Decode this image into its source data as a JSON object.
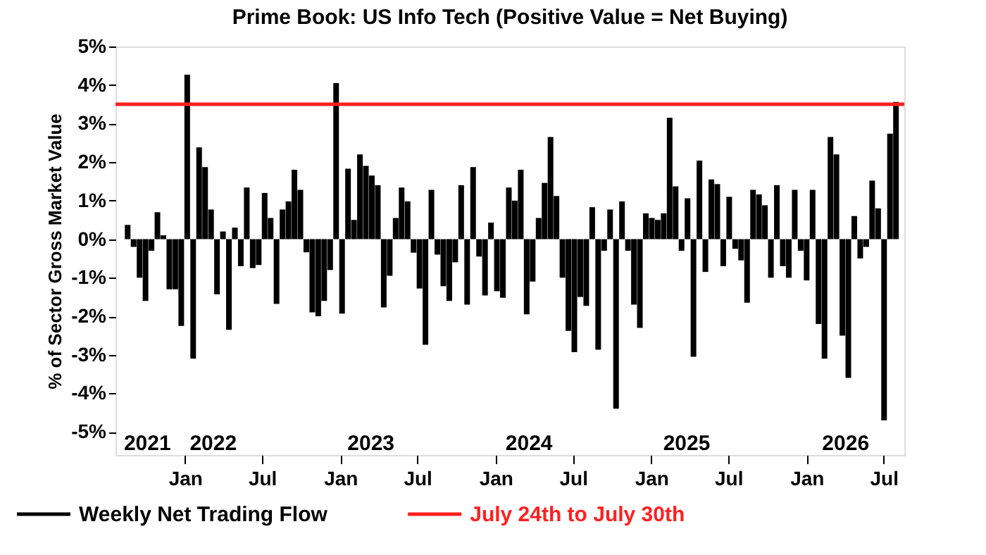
{
  "chart_data": {
    "type": "bar",
    "title": "Prime Book: US Info Tech (Positive Value = Net Buying)",
    "ylabel": "% of Sector Gross Market Value",
    "x": [
      "2021-08-19",
      "2021-09-02",
      "2021-09-16",
      "2021-09-30",
      "2021-10-14",
      "2021-10-28",
      "2021-11-11",
      "2021-11-25",
      "2021-12-09",
      "2021-12-23",
      "2022-01-06",
      "2022-01-20",
      "2022-02-03",
      "2022-02-17",
      "2022-03-03",
      "2022-03-17",
      "2022-03-31",
      "2022-04-14",
      "2022-04-28",
      "2022-05-12",
      "2022-05-26",
      "2022-06-09",
      "2022-06-23",
      "2022-07-07",
      "2022-07-21",
      "2022-08-04",
      "2022-08-18",
      "2022-09-01",
      "2022-09-15",
      "2022-09-29",
      "2022-10-13",
      "2022-10-27",
      "2022-11-10",
      "2022-11-24",
      "2022-12-08",
      "2022-12-22",
      "2023-01-05",
      "2023-01-19",
      "2023-02-02",
      "2023-02-16",
      "2023-03-02",
      "2023-03-16",
      "2023-03-30",
      "2023-04-13",
      "2023-04-27",
      "2023-05-11",
      "2023-05-25",
      "2023-06-08",
      "2023-06-22",
      "2023-07-06",
      "2023-07-20",
      "2023-08-03",
      "2023-08-17",
      "2023-08-31",
      "2023-09-14",
      "2023-09-28",
      "2023-10-12",
      "2023-10-26",
      "2023-11-09",
      "2023-11-23",
      "2023-12-07",
      "2023-12-21",
      "2024-01-04",
      "2024-01-18",
      "2024-02-01",
      "2024-02-15",
      "2024-02-29",
      "2024-03-14",
      "2024-03-28",
      "2024-04-11",
      "2024-04-25",
      "2024-05-09",
      "2024-05-23",
      "2024-06-06",
      "2024-06-20",
      "2024-07-04",
      "2024-07-18",
      "2024-08-01",
      "2024-08-15",
      "2024-08-29",
      "2024-09-12",
      "2024-09-26",
      "2024-10-10",
      "2024-10-24",
      "2024-11-07",
      "2024-11-21",
      "2024-12-05",
      "2024-12-19",
      "2025-01-02",
      "2025-01-16",
      "2025-01-30",
      "2025-02-13",
      "2025-02-27",
      "2025-03-13",
      "2025-03-27",
      "2025-04-10",
      "2025-04-24",
      "2025-05-08",
      "2025-05-22",
      "2025-06-05",
      "2025-06-19",
      "2025-07-03",
      "2025-07-17",
      "2025-07-31",
      "2025-08-14",
      "2025-08-28",
      "2025-09-11",
      "2025-09-25",
      "2025-10-09",
      "2025-10-23",
      "2025-11-06",
      "2025-11-20",
      "2025-12-04",
      "2025-12-18",
      "2026-01-01",
      "2026-01-15",
      "2026-01-29",
      "2026-02-12",
      "2026-02-26",
      "2026-03-12",
      "2026-03-26",
      "2026-04-09",
      "2026-04-23",
      "2026-05-07",
      "2026-05-21",
      "2026-06-04",
      "2026-06-18",
      "2026-07-02",
      "2026-07-16",
      "2026-07-30"
    ],
    "series": [
      {
        "name": "Weekly Net Trading Flow",
        "color": "#000000",
        "values": [
          0.37,
          -0.2,
          -1.0,
          -1.6,
          -0.3,
          0.7,
          0.1,
          -1.3,
          -1.3,
          -2.25,
          4.27,
          -3.1,
          2.38,
          1.87,
          0.77,
          -1.43,
          0.2,
          -2.35,
          0.3,
          -0.7,
          1.34,
          -0.75,
          -0.67,
          1.2,
          0.55,
          -1.68,
          0.77,
          0.98,
          1.8,
          1.28,
          -0.34,
          -1.9,
          -2.0,
          -1.6,
          -0.8,
          4.05,
          -1.93,
          1.83,
          0.5,
          2.2,
          1.9,
          1.65,
          1.4,
          -1.77,
          -0.95,
          0.55,
          1.34,
          0.98,
          -0.35,
          -1.28,
          -2.74,
          1.28,
          -0.4,
          -1.22,
          -1.6,
          -0.6,
          1.4,
          -1.7,
          1.87,
          -0.45,
          -1.46,
          0.43,
          -1.35,
          -1.52,
          1.34,
          1.0,
          1.8,
          -1.95,
          -1.1,
          0.55,
          1.46,
          2.65,
          1.12,
          -1.0,
          -2.38,
          -2.93,
          -1.5,
          -1.73,
          0.83,
          -2.87,
          -0.3,
          0.77,
          -4.4,
          0.98,
          -0.3,
          -1.7,
          -2.3,
          0.67,
          0.55,
          0.5,
          0.67,
          3.15,
          1.37,
          -0.3,
          1.06,
          -3.05,
          2.04,
          -0.85,
          1.55,
          1.43,
          -0.7,
          1.1,
          -0.25,
          -0.55,
          -1.65,
          1.28,
          1.16,
          0.88,
          -1.0,
          1.4,
          -0.7,
          -1.0,
          1.28,
          -0.3,
          -1.07,
          1.28,
          -2.2,
          -3.1,
          2.65,
          2.2,
          -2.5,
          -3.6,
          0.6,
          -0.5,
          -0.2,
          1.52,
          0.8,
          -4.7,
          2.74,
          3.56
        ]
      }
    ],
    "xlim": [
      "2021-08-07",
      "2026-08-02"
    ],
    "xticks": [
      {
        "value": "2022-01-01",
        "label": "Jan"
      },
      {
        "value": "2022-07-01",
        "label": "Jul"
      },
      {
        "value": "2023-01-01",
        "label": "Jan"
      },
      {
        "value": "2023-07-01",
        "label": "Jul"
      },
      {
        "value": "2024-01-01",
        "label": "Jan"
      },
      {
        "value": "2024-07-01",
        "label": "Jul"
      },
      {
        "value": "2025-01-01",
        "label": "Jan"
      },
      {
        "value": "2025-07-01",
        "label": "Jul"
      },
      {
        "value": "2026-01-01",
        "label": "Jan"
      },
      {
        "value": "2026-07-01",
        "label": "Jul"
      }
    ],
    "ylim": [
      -5.6,
      5
    ],
    "yticks": [
      {
        "value": -5,
        "label": "-5%"
      },
      {
        "value": -4,
        "label": "-4%"
      },
      {
        "value": -3,
        "label": "-3%"
      },
      {
        "value": -2,
        "label": "-2%"
      },
      {
        "value": -1,
        "label": "-1%"
      },
      {
        "value": 0,
        "label": "0%"
      },
      {
        "value": 1,
        "label": "1%"
      },
      {
        "value": 2,
        "label": "2%"
      },
      {
        "value": 3,
        "label": "3%"
      },
      {
        "value": 4,
        "label": "4%"
      },
      {
        "value": 5,
        "label": "5%"
      }
    ],
    "ref_lines": [
      {
        "axis": "y",
        "value": 3.5,
        "label": "July 24th to July 30th",
        "color": "#ff2020"
      }
    ],
    "x2lim": [
      "2021-08-07",
      "2026-08-02"
    ],
    "x2ticks": [
      {
        "value": "2021-10-18",
        "label": "2021"
      },
      {
        "value": "2022-03-19",
        "label": "2022"
      },
      {
        "value": "2023-03-18",
        "label": "2023"
      },
      {
        "value": "2024-03-17",
        "label": "2024"
      },
      {
        "value": "2025-03-16",
        "label": "2025"
      },
      {
        "value": "2026-03-18",
        "label": "2026"
      }
    ],
    "grid": false,
    "legend": "bottom"
  }
}
